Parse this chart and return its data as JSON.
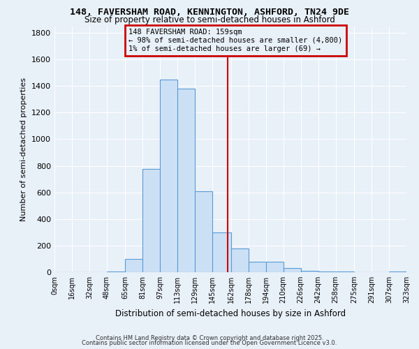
{
  "title_line1": "148, FAVERSHAM ROAD, KENNINGTON, ASHFORD, TN24 9DE",
  "title_line2": "Size of property relative to semi-detached houses in Ashford",
  "xlabel": "Distribution of semi-detached houses by size in Ashford",
  "ylabel": "Number of semi-detached properties",
  "bin_edges": [
    0,
    16,
    32,
    48,
    65,
    81,
    97,
    113,
    129,
    145,
    162,
    178,
    194,
    210,
    226,
    242,
    258,
    275,
    291,
    307,
    323
  ],
  "bin_heights": [
    0,
    0,
    0,
    5,
    100,
    775,
    1450,
    1380,
    610,
    300,
    180,
    80,
    80,
    30,
    10,
    5,
    5,
    0,
    0,
    5
  ],
  "bar_color": "#cce0f5",
  "bar_edgecolor": "#5b9bd5",
  "property_size": 159,
  "red_line_color": "#cc0000",
  "annotation_text_line1": "148 FAVERSHAM ROAD: 159sqm",
  "annotation_text_line2": "← 98% of semi-detached houses are smaller (4,800)",
  "annotation_text_line3": "1% of semi-detached houses are larger (69) →",
  "ylim": [
    0,
    1850
  ],
  "yticks": [
    0,
    200,
    400,
    600,
    800,
    1000,
    1200,
    1400,
    1600,
    1800
  ],
  "background_color": "#e8f0f8",
  "grid_color": "#ffffff",
  "tick_labels": [
    "0sqm",
    "16sqm",
    "32sqm",
    "48sqm",
    "65sqm",
    "81sqm",
    "97sqm",
    "113sqm",
    "129sqm",
    "145sqm",
    "162sqm",
    "178sqm",
    "194sqm",
    "210sqm",
    "226sqm",
    "242sqm",
    "258sqm",
    "275sqm",
    "291sqm",
    "307sqm",
    "323sqm"
  ],
  "footer_line1": "Contains HM Land Registry data © Crown copyright and database right 2025.",
  "footer_line2": "Contains public sector information licensed under the Open Government Licence v3.0."
}
